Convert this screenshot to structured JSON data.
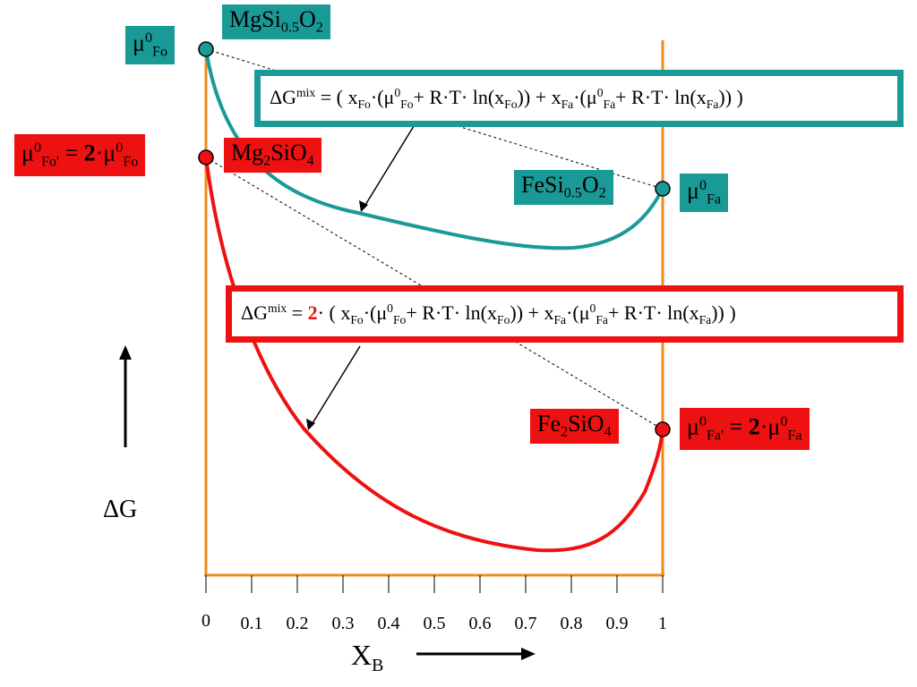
{
  "colors": {
    "teal": "#1a9a96",
    "red": "#ee1111",
    "axis": "#ef8a1f"
  },
  "labels": {
    "mu_fo": {
      "base": "μ",
      "sup": "0",
      "sub": "Fo"
    },
    "mgsi05o2": {
      "a": "MgSi",
      "b": "0.5",
      "c": "O",
      "d": "2"
    },
    "mu_fo_prime": {
      "mu": "μ",
      "sup": "0",
      "sub": "Fo'",
      "eq": " = ",
      "two": "2",
      "dot": "·μ",
      "sup2": "0",
      "sub2": "Fo"
    },
    "mg2sio4": {
      "a": "Mg",
      "b": "2",
      "c": "SiO",
      "d": "4"
    },
    "fesi05o2": {
      "a": "FeSi",
      "b": "0.5",
      "c": "O",
      "d": "2"
    },
    "mu_fa": {
      "base": "μ",
      "sup": "0",
      "sub": "Fa"
    },
    "fe2sio4": {
      "a": "Fe",
      "b": "2",
      "c": "SiO",
      "d": "4"
    },
    "mu_fa_prime": {
      "mu": "μ",
      "sup": "0",
      "sub": "Fa'",
      "eq": " = ",
      "two": "2",
      "dot": "·μ",
      "sup2": "0",
      "sub2": "Fa"
    }
  },
  "formula_teal": {
    "lhs": "ΔG",
    "lhs_sup": "mix",
    "eq": " = ( x",
    "s1": "Fo",
    "t1": "·(μ",
    "p1": "0",
    "s2": "Fo",
    "t2": "+ R·T· ln(x",
    "s3": "Fo",
    "t3": ")) + x",
    "s4": "Fa",
    "t4": "·(μ",
    "p2": "0",
    "s5": "Fa",
    "t5": "+ R·T· ln(x",
    "s6": "Fa",
    "t6": ")) )"
  },
  "formula_red": {
    "lhs": "ΔG",
    "lhs_sup": "mix",
    "eq": " = ",
    "two": "2",
    "eq2": "· ( x",
    "s1": "Fo",
    "t1": "·(μ",
    "p1": "0",
    "s2": "Fo",
    "t2": "+ R·T· ln(x",
    "s3": "Fo",
    "t3": ")) + x",
    "s4": "Fa",
    "t4": "·(μ",
    "p2": "0",
    "s5": "Fa",
    "t5": "+ R·T· ln(x",
    "s6": "Fa",
    "t6": ")) )"
  },
  "axis": {
    "ticks": [
      "0",
      "0.1",
      "0.2",
      "0.3",
      "0.4",
      "0.5",
      "0.6",
      "0.7",
      "0.8",
      "0.9",
      "1"
    ],
    "x_label": "X",
    "x_sub": "B",
    "y_label": "ΔG"
  }
}
